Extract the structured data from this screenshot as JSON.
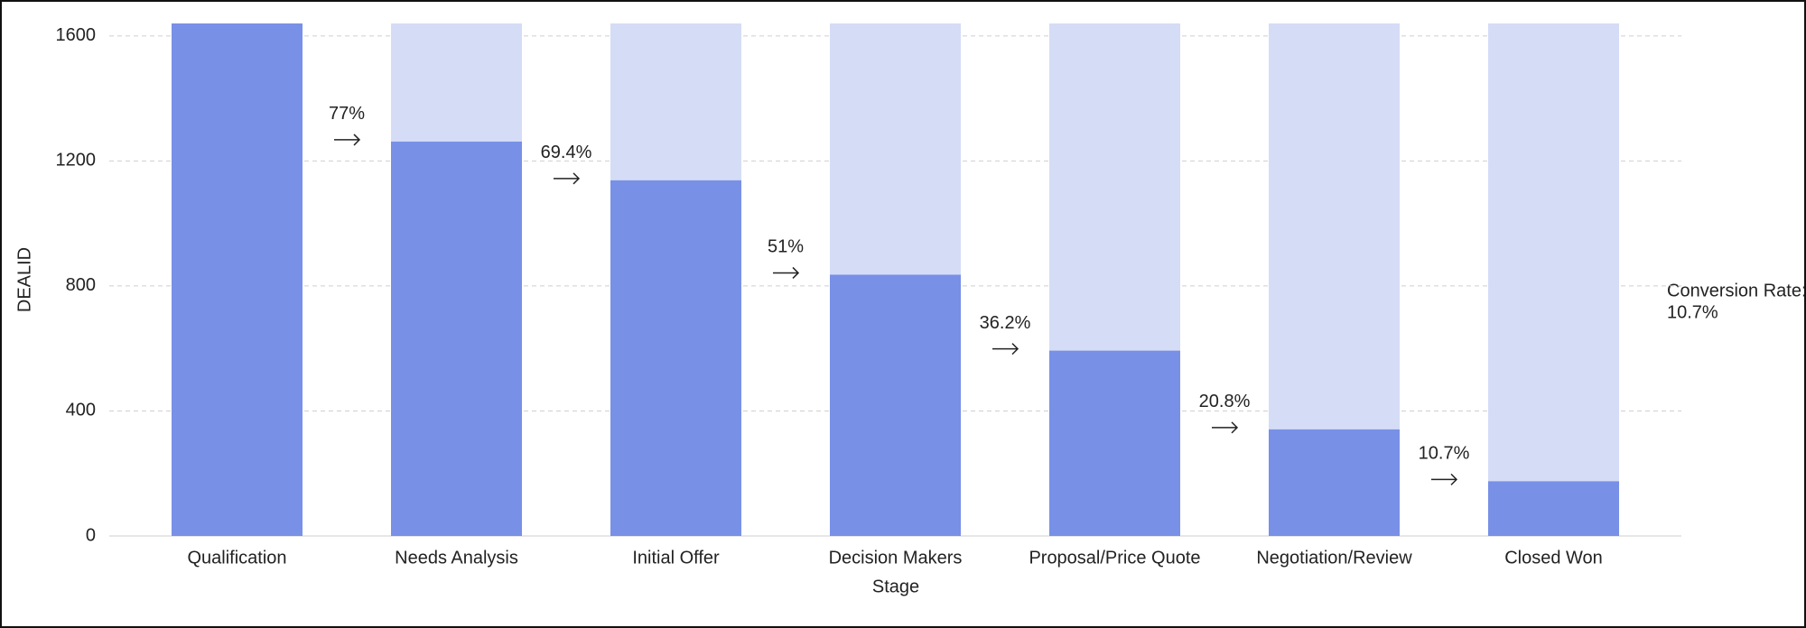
{
  "chart_data": {
    "type": "funnel_bar",
    "y_label": "DEALID",
    "x_label": "Stage",
    "categories": [
      "Qualification",
      "Needs Analysis",
      "Initial Offer",
      "Decision Makers",
      "Proposal/Price Quote",
      "Negotiation/Review",
      "Closed Won"
    ],
    "values": [
      1640,
      1262,
      1138,
      836,
      593,
      341,
      175
    ],
    "color": "#7890e6",
    "background_color": "#d5dcf6",
    "conversion_labels": [
      "77%",
      "69.4%",
      "51%",
      "36.2%",
      "20.8%",
      "10.7%"
    ],
    "conversion_rate_title": "Conversion Rate:",
    "conversion_rate": "10.7%",
    "ylim": [
      0,
      1640
    ],
    "yticks": [
      0,
      400,
      800,
      1200,
      1600
    ],
    "grid": true
  }
}
